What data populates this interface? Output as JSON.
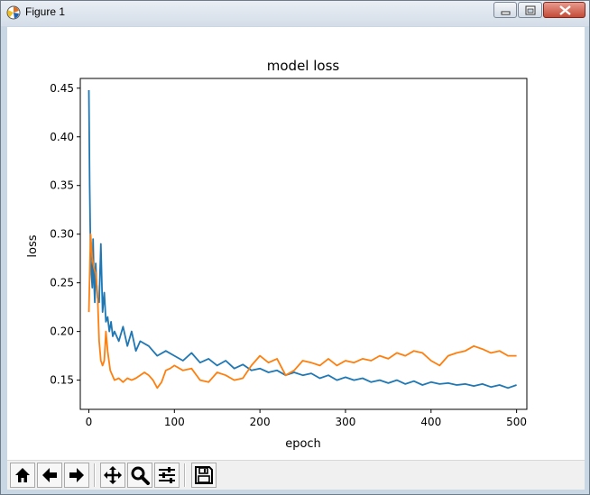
{
  "window": {
    "title": "Figure 1",
    "controls": [
      "minimize",
      "maximize",
      "close"
    ]
  },
  "toolbar": {
    "buttons": [
      {
        "name": "home",
        "icon": "home-icon"
      },
      {
        "name": "back",
        "icon": "arrow-left-icon"
      },
      {
        "name": "forward",
        "icon": "arrow-right-icon"
      },
      {
        "name": "pan",
        "icon": "move-icon"
      },
      {
        "name": "zoom",
        "icon": "magnifier-icon"
      },
      {
        "name": "configure-subplots",
        "icon": "sliders-icon"
      },
      {
        "name": "save",
        "icon": "floppy-disk-icon"
      }
    ]
  },
  "chart_data": {
    "type": "line",
    "title": "model loss",
    "xlabel": "epoch",
    "ylabel": "loss",
    "xlim": [
      -10,
      512
    ],
    "ylim": [
      0.12,
      0.46
    ],
    "xticks": [
      0,
      100,
      200,
      300,
      400,
      500
    ],
    "yticks": [
      0.15,
      0.2,
      0.25,
      0.3,
      0.35,
      0.4,
      0.45
    ],
    "grid": false,
    "colors": {
      "train": "#1f77b4",
      "validation": "#ff7f0e"
    },
    "series": [
      {
        "color": "#1f77b4",
        "x": [
          0,
          1,
          2,
          3,
          4,
          5,
          6,
          7,
          8,
          9,
          10,
          12,
          14,
          16,
          18,
          20,
          22,
          24,
          26,
          28,
          30,
          35,
          40,
          45,
          50,
          55,
          60,
          70,
          80,
          90,
          100,
          110,
          120,
          130,
          140,
          150,
          160,
          170,
          180,
          190,
          200,
          210,
          220,
          230,
          240,
          250,
          260,
          270,
          280,
          290,
          300,
          310,
          320,
          330,
          340,
          350,
          360,
          370,
          380,
          390,
          400,
          410,
          420,
          430,
          440,
          450,
          460,
          470,
          480,
          490,
          500
        ],
        "y": [
          0.448,
          0.35,
          0.28,
          0.26,
          0.245,
          0.295,
          0.25,
          0.23,
          0.27,
          0.25,
          0.235,
          0.23,
          0.29,
          0.22,
          0.24,
          0.21,
          0.215,
          0.2,
          0.21,
          0.195,
          0.2,
          0.19,
          0.205,
          0.185,
          0.2,
          0.18,
          0.19,
          0.185,
          0.175,
          0.18,
          0.175,
          0.17,
          0.178,
          0.168,
          0.172,
          0.165,
          0.17,
          0.162,
          0.166,
          0.16,
          0.162,
          0.158,
          0.16,
          0.155,
          0.158,
          0.155,
          0.157,
          0.152,
          0.155,
          0.15,
          0.153,
          0.15,
          0.152,
          0.148,
          0.15,
          0.147,
          0.15,
          0.146,
          0.149,
          0.145,
          0.148,
          0.146,
          0.147,
          0.145,
          0.146,
          0.144,
          0.146,
          0.143,
          0.145,
          0.142,
          0.145
        ]
      },
      {
        "color": "#ff7f0e",
        "x": [
          0,
          2,
          4,
          6,
          8,
          10,
          12,
          14,
          16,
          18,
          20,
          22,
          25,
          30,
          35,
          40,
          45,
          50,
          55,
          60,
          65,
          70,
          75,
          80,
          85,
          90,
          95,
          100,
          110,
          120,
          130,
          140,
          150,
          160,
          170,
          180,
          190,
          200,
          210,
          220,
          230,
          240,
          250,
          260,
          270,
          280,
          290,
          300,
          310,
          320,
          330,
          340,
          350,
          360,
          370,
          380,
          390,
          400,
          410,
          420,
          430,
          440,
          450,
          460,
          470,
          480,
          490,
          500
        ],
        "y": [
          0.22,
          0.3,
          0.275,
          0.265,
          0.26,
          0.24,
          0.19,
          0.17,
          0.165,
          0.17,
          0.2,
          0.18,
          0.16,
          0.15,
          0.152,
          0.148,
          0.152,
          0.15,
          0.152,
          0.155,
          0.158,
          0.155,
          0.15,
          0.142,
          0.148,
          0.16,
          0.162,
          0.165,
          0.16,
          0.162,
          0.15,
          0.148,
          0.158,
          0.155,
          0.15,
          0.152,
          0.165,
          0.175,
          0.168,
          0.172,
          0.155,
          0.16,
          0.17,
          0.168,
          0.165,
          0.172,
          0.165,
          0.17,
          0.168,
          0.172,
          0.17,
          0.175,
          0.172,
          0.178,
          0.175,
          0.18,
          0.178,
          0.17,
          0.165,
          0.175,
          0.178,
          0.18,
          0.185,
          0.182,
          0.178,
          0.18,
          0.175,
          0.175
        ]
      }
    ]
  }
}
